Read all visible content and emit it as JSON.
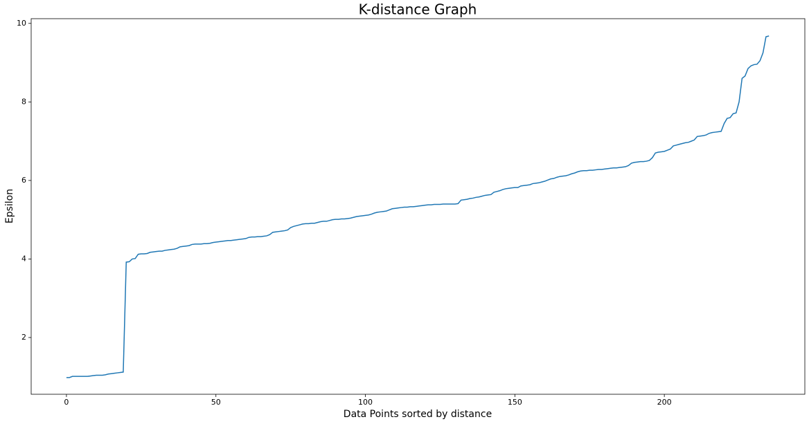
{
  "chart_data": {
    "type": "line",
    "title": "K-distance Graph",
    "x_label": "Data Points sorted by distance",
    "y_label": "Epsilon",
    "color": "#1f77b4",
    "grid": false,
    "xlim": [
      -11.8,
      247
    ],
    "ylim": [
      0.555,
      10.12
    ],
    "xticks": [
      0,
      50,
      100,
      150,
      200
    ],
    "yticks": [
      2,
      4,
      6,
      8,
      10
    ],
    "x": [
      0,
      1,
      2,
      3,
      4,
      5,
      6,
      7,
      8,
      9,
      10,
      11,
      12,
      13,
      14,
      15,
      16,
      17,
      18,
      19,
      20,
      21,
      22,
      23,
      24,
      25,
      26,
      27,
      28,
      29,
      30,
      31,
      32,
      33,
      34,
      35,
      36,
      37,
      38,
      39,
      40,
      41,
      42,
      43,
      44,
      45,
      46,
      47,
      48,
      49,
      50,
      51,
      52,
      53,
      54,
      55,
      56,
      57,
      58,
      59,
      60,
      61,
      62,
      63,
      64,
      65,
      66,
      67,
      68,
      69,
      70,
      71,
      72,
      73,
      74,
      75,
      76,
      77,
      78,
      79,
      80,
      81,
      82,
      83,
      84,
      85,
      86,
      87,
      88,
      89,
      90,
      91,
      92,
      93,
      94,
      95,
      96,
      97,
      98,
      99,
      100,
      101,
      102,
      103,
      104,
      105,
      106,
      107,
      108,
      109,
      110,
      111,
      112,
      113,
      114,
      115,
      116,
      117,
      118,
      119,
      120,
      121,
      122,
      123,
      124,
      125,
      126,
      127,
      128,
      129,
      130,
      131,
      132,
      133,
      134,
      135,
      136,
      137,
      138,
      139,
      140,
      141,
      142,
      143,
      144,
      145,
      146,
      147,
      148,
      149,
      150,
      151,
      152,
      153,
      154,
      155,
      156,
      157,
      158,
      159,
      160,
      161,
      162,
      163,
      164,
      165,
      166,
      167,
      168,
      169,
      170,
      171,
      172,
      173,
      174,
      175,
      176,
      177,
      178,
      179,
      180,
      181,
      182,
      183,
      184,
      185,
      186,
      187,
      188,
      189,
      190,
      191,
      192,
      193,
      194,
      195,
      196,
      197,
      198,
      199,
      200,
      201,
      202,
      203,
      204,
      205,
      206,
      207,
      208,
      209,
      210,
      211,
      212,
      213,
      214,
      215,
      216,
      217,
      218,
      219,
      220,
      221,
      222,
      223,
      224,
      225,
      226,
      227,
      228,
      229,
      230,
      231,
      232,
      233,
      234,
      235
    ],
    "values": [
      0.98,
      0.98,
      1.01,
      1.01,
      1.01,
      1.01,
      1.01,
      1.01,
      1.02,
      1.03,
      1.04,
      1.04,
      1.04,
      1.05,
      1.07,
      1.08,
      1.09,
      1.1,
      1.11,
      1.12,
      3.92,
      3.93,
      4.0,
      4.01,
      4.12,
      4.13,
      4.13,
      4.14,
      4.17,
      4.18,
      4.19,
      4.2,
      4.2,
      4.22,
      4.23,
      4.24,
      4.25,
      4.27,
      4.31,
      4.32,
      4.33,
      4.34,
      4.37,
      4.38,
      4.38,
      4.38,
      4.39,
      4.39,
      4.4,
      4.42,
      4.43,
      4.44,
      4.45,
      4.46,
      4.47,
      4.47,
      4.48,
      4.49,
      4.5,
      4.51,
      4.52,
      4.55,
      4.56,
      4.56,
      4.57,
      4.57,
      4.58,
      4.59,
      4.62,
      4.68,
      4.69,
      4.7,
      4.71,
      4.72,
      4.74,
      4.8,
      4.83,
      4.85,
      4.87,
      4.89,
      4.9,
      4.9,
      4.91,
      4.91,
      4.93,
      4.95,
      4.96,
      4.96,
      4.98,
      5.0,
      5.01,
      5.01,
      5.02,
      5.02,
      5.03,
      5.04,
      5.06,
      5.08,
      5.09,
      5.1,
      5.11,
      5.12,
      5.14,
      5.17,
      5.19,
      5.2,
      5.21,
      5.22,
      5.25,
      5.28,
      5.29,
      5.3,
      5.31,
      5.32,
      5.32,
      5.33,
      5.33,
      5.34,
      5.35,
      5.36,
      5.37,
      5.38,
      5.38,
      5.39,
      5.39,
      5.39,
      5.4,
      5.4,
      5.4,
      5.4,
      5.4,
      5.41,
      5.5,
      5.51,
      5.52,
      5.54,
      5.55,
      5.57,
      5.58,
      5.6,
      5.62,
      5.63,
      5.64,
      5.7,
      5.72,
      5.74,
      5.77,
      5.79,
      5.8,
      5.81,
      5.82,
      5.82,
      5.86,
      5.87,
      5.88,
      5.89,
      5.92,
      5.93,
      5.94,
      5.96,
      5.98,
      6.01,
      6.04,
      6.05,
      6.08,
      6.1,
      6.11,
      6.12,
      6.14,
      6.17,
      6.19,
      6.22,
      6.24,
      6.25,
      6.25,
      6.26,
      6.26,
      6.27,
      6.28,
      6.28,
      6.29,
      6.3,
      6.31,
      6.32,
      6.32,
      6.33,
      6.34,
      6.35,
      6.38,
      6.44,
      6.46,
      6.47,
      6.48,
      6.48,
      6.49,
      6.51,
      6.58,
      6.7,
      6.72,
      6.73,
      6.74,
      6.77,
      6.8,
      6.88,
      6.9,
      6.92,
      6.94,
      6.96,
      6.97,
      7.0,
      7.03,
      7.12,
      7.13,
      7.14,
      7.16,
      7.2,
      7.22,
      7.23,
      7.24,
      7.25,
      7.45,
      7.58,
      7.6,
      7.7,
      7.72,
      8.0,
      8.6,
      8.66,
      8.85,
      8.92,
      8.95,
      8.96,
      9.05,
      9.25,
      9.66,
      9.68
    ]
  }
}
